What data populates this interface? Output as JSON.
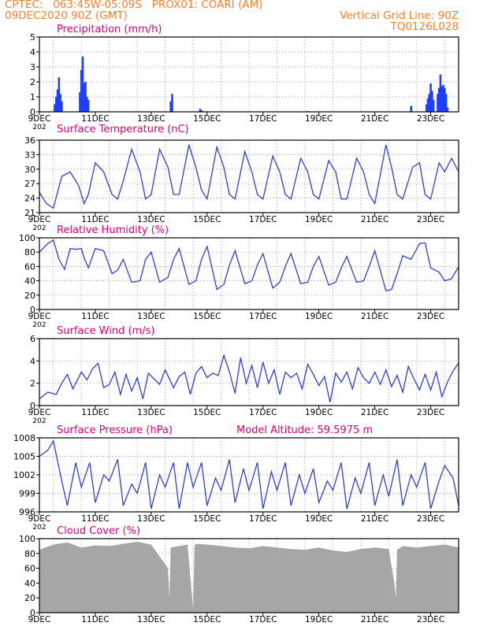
{
  "header": {
    "line1": "CPTEC:   063:45W-05:09S   PROX01: COARI (AM)",
    "line2": "09DEC2020 90Z (GMT)",
    "right1": "Vertical Grid Line: 90Z",
    "right2": "TQ0126L028"
  },
  "colors": {
    "header": "#ff7f27",
    "title": "#e0007a",
    "series": "#2f3fd6",
    "bars": "#1f3fff",
    "cloud": "#a6a6a6",
    "grid": "#9a9a9a"
  },
  "x_axis": {
    "tick_labels": [
      "9DEC",
      "11DEC",
      "13DEC",
      "15DEC",
      "17DEC",
      "19DEC",
      "21DEC",
      "23DEC"
    ],
    "year_stub": "202"
  },
  "chart_data": [
    {
      "type": "bar",
      "title": "Precipitation (mm/h)",
      "ylim": [
        0,
        5
      ],
      "yticks": [
        "0",
        "1",
        "2",
        "3",
        "4",
        "5"
      ],
      "x": [
        0.55,
        0.6,
        0.65,
        0.7,
        0.75,
        0.8,
        1.45,
        1.5,
        1.55,
        1.6,
        1.65,
        1.7,
        1.75,
        4.7,
        4.75,
        5.75,
        5.8,
        9.6,
        13.3,
        13.85,
        13.9,
        13.95,
        14.0,
        14.05,
        14.1,
        14.25,
        14.3,
        14.35,
        14.4,
        14.45,
        14.5,
        14.55,
        14.6
      ],
      "values": [
        0.5,
        1.0,
        1.5,
        2.3,
        1.2,
        0.7,
        1.3,
        2.8,
        3.7,
        1.9,
        2.0,
        1.0,
        0.8,
        0.7,
        1.2,
        0.2,
        0.1,
        0.05,
        0.4,
        0.5,
        0.9,
        1.2,
        1.9,
        1.4,
        0.8,
        1.2,
        1.6,
        2.5,
        1.7,
        1.8,
        1.6,
        1.2,
        0.3
      ]
    },
    {
      "type": "line",
      "title": "Surface Temperature (nC)",
      "ylim": [
        21,
        37
      ],
      "yticks": [
        "21",
        "24",
        "27",
        "30",
        "33",
        "36"
      ],
      "x": [
        0,
        0.25,
        0.5,
        0.8,
        1.1,
        1.4,
        1.6,
        1.75,
        2.0,
        2.3,
        2.6,
        2.8,
        3.0,
        3.3,
        3.6,
        3.8,
        4.0,
        4.3,
        4.6,
        4.8,
        5.0,
        5.35,
        5.6,
        5.8,
        6.0,
        6.35,
        6.6,
        6.8,
        7.0,
        7.35,
        7.6,
        7.8,
        8.0,
        8.35,
        8.6,
        8.8,
        9.0,
        9.35,
        9.6,
        9.8,
        10.0,
        10.35,
        10.6,
        10.8,
        11.0,
        11.35,
        11.6,
        11.8,
        12.0,
        12.4,
        12.6,
        12.8,
        13.0,
        13.35,
        13.6,
        13.8,
        14.0,
        14.3,
        14.5,
        14.75,
        15.0
      ],
      "values": [
        25.5,
        23,
        22,
        29,
        30,
        27,
        23,
        25,
        32,
        30,
        25,
        24,
        28,
        35,
        30,
        24,
        25,
        35,
        31,
        25,
        25,
        36,
        31,
        26,
        24,
        35.5,
        31,
        25,
        24,
        34.5,
        30,
        25,
        24,
        33.5,
        30,
        25,
        24,
        33,
        30,
        25,
        24,
        32.5,
        30,
        24,
        24,
        33,
        30,
        25,
        23,
        36,
        31,
        25,
        24,
        31,
        32,
        25,
        24,
        32,
        30,
        33,
        30
      ]
    },
    {
      "type": "line",
      "title": "Relative Humidity (%)",
      "ylim": [
        0,
        100
      ],
      "yticks": [
        "0",
        "20",
        "40",
        "60",
        "80",
        "100"
      ],
      "x": [
        0,
        0.3,
        0.5,
        0.7,
        0.9,
        1.1,
        1.3,
        1.5,
        1.6,
        1.75,
        2.0,
        2.3,
        2.6,
        2.8,
        3.0,
        3.3,
        3.6,
        3.8,
        4.0,
        4.3,
        4.6,
        4.8,
        5.0,
        5.35,
        5.6,
        5.8,
        6.0,
        6.35,
        6.6,
        6.8,
        7.0,
        7.35,
        7.6,
        7.8,
        8.0,
        8.35,
        8.6,
        8.8,
        9.0,
        9.35,
        9.6,
        9.8,
        10.0,
        10.35,
        10.6,
        10.8,
        11.0,
        11.35,
        11.6,
        11.8,
        12.0,
        12.4,
        12.6,
        12.8,
        13.0,
        13.3,
        13.6,
        13.8,
        14.0,
        14.3,
        14.5,
        14.75,
        15.0
      ],
      "values": [
        80,
        92,
        97,
        70,
        56,
        85,
        84,
        85,
        72,
        58,
        85,
        82,
        50,
        55,
        70,
        38,
        40,
        70,
        80,
        38,
        45,
        70,
        85,
        35,
        40,
        70,
        88,
        28,
        35,
        62,
        82,
        36,
        40,
        62,
        78,
        30,
        38,
        60,
        78,
        36,
        38,
        60,
        74,
        34,
        38,
        58,
        74,
        38,
        40,
        60,
        82,
        26,
        28,
        50,
        75,
        70,
        92,
        93,
        58,
        52,
        40,
        43,
        60
      ]
    },
    {
      "type": "line",
      "title": "Surface Wind (m/s)",
      "ylim": [
        0,
        6
      ],
      "yticks": [
        "0",
        "2",
        "4",
        "6"
      ],
      "x": [
        0,
        0.3,
        0.6,
        0.8,
        1.0,
        1.2,
        1.5,
        1.7,
        1.9,
        2.1,
        2.3,
        2.5,
        2.7,
        2.9,
        3.1,
        3.3,
        3.5,
        3.7,
        3.9,
        4.1,
        4.3,
        4.5,
        4.8,
        5.0,
        5.2,
        5.4,
        5.6,
        5.8,
        6.0,
        6.2,
        6.4,
        6.6,
        6.8,
        7.0,
        7.2,
        7.4,
        7.6,
        7.8,
        8.0,
        8.2,
        8.4,
        8.6,
        8.8,
        9.0,
        9.2,
        9.4,
        9.6,
        9.8,
        10.0,
        10.2,
        10.4,
        10.6,
        10.8,
        11.0,
        11.2,
        11.4,
        11.6,
        11.8,
        12.0,
        12.2,
        12.4,
        12.6,
        12.8,
        13.0,
        13.2,
        13.4,
        13.6,
        13.8,
        14.0,
        14.2,
        14.4,
        14.6,
        14.8,
        15.0
      ],
      "values": [
        0.6,
        1.2,
        1.0,
        2.0,
        2.8,
        1.5,
        3.0,
        2.3,
        3.3,
        3.8,
        1.6,
        1.9,
        3.0,
        1.0,
        2.8,
        1.3,
        2.5,
        0.6,
        2.9,
        2.4,
        1.9,
        3.2,
        1.6,
        2.6,
        3.0,
        1.0,
        2.9,
        3.5,
        2.5,
        2.9,
        2.7,
        4.5,
        3.0,
        1.1,
        4.3,
        2.0,
        3.6,
        1.6,
        3.9,
        2.0,
        3.2,
        1.0,
        3.0,
        2.5,
        2.9,
        1.5,
        3.7,
        2.8,
        1.8,
        2.6,
        0.3,
        2.9,
        2.1,
        3.0,
        1.5,
        3.4,
        2.5,
        2.0,
        3.0,
        1.9,
        3.2,
        1.7,
        2.7,
        1.2,
        3.5,
        2.4,
        1.4,
        2.8,
        1.4,
        3.0,
        0.8,
        2.1,
        3.1,
        3.8
      ]
    },
    {
      "type": "line",
      "title": "Surface Pressure (hPa)",
      "annotation": "Model Altitude: 59.5975 m",
      "ylim": [
        996,
        1008
      ],
      "yticks": [
        "996",
        "999",
        "1002",
        "1005",
        "1008"
      ],
      "x": [
        0,
        0.3,
        0.5,
        0.8,
        1.0,
        1.3,
        1.5,
        1.8,
        2.0,
        2.3,
        2.5,
        2.8,
        3.0,
        3.3,
        3.5,
        3.8,
        4.0,
        4.3,
        4.5,
        4.8,
        5.0,
        5.3,
        5.5,
        5.8,
        6.0,
        6.3,
        6.5,
        6.8,
        7.0,
        7.3,
        7.5,
        7.8,
        8.0,
        8.3,
        8.5,
        8.8,
        9.0,
        9.3,
        9.5,
        9.8,
        10.0,
        10.3,
        10.5,
        10.8,
        11.0,
        11.3,
        11.5,
        11.8,
        12.0,
        12.3,
        12.5,
        12.8,
        13.0,
        13.3,
        13.5,
        13.8,
        14.0,
        14.3,
        14.5,
        14.8,
        15.0
      ],
      "values": [
        1005,
        1006,
        1007.5,
        1001,
        997,
        1004,
        1000,
        1004,
        997.5,
        1002,
        1001,
        1004.5,
        997,
        1000.5,
        999,
        1004,
        996.5,
        1002,
        1000,
        1004,
        996.5,
        1004,
        1000,
        1004,
        997,
        1001.5,
        999.5,
        1004.5,
        997.5,
        1003,
        999.5,
        1004,
        996.5,
        1002.5,
        999.5,
        1004,
        997,
        1002,
        999,
        1003,
        997.5,
        1001,
        999.5,
        1004,
        996.5,
        1001.5,
        999,
        1004,
        997,
        1002,
        998.5,
        1004.5,
        997,
        1002,
        1000,
        1004,
        996.5,
        1001,
        1003.5,
        1001.5,
        997
      ]
    },
    {
      "type": "area",
      "title": "Cloud Cover (%)",
      "ylim": [
        0,
        100
      ],
      "yticks": [
        "0",
        "20",
        "40",
        "60",
        "80",
        "100"
      ],
      "x": [
        0,
        0.5,
        1.0,
        1.5,
        2.0,
        2.5,
        3.0,
        3.5,
        4.0,
        4.6,
        4.65,
        4.7,
        5.0,
        5.3,
        5.5,
        5.55,
        5.6,
        6.0,
        6.5,
        7.0,
        7.5,
        8.0,
        8.5,
        9.0,
        9.5,
        10.0,
        10.5,
        11.0,
        11.5,
        12.0,
        12.5,
        12.7,
        12.75,
        12.8,
        13.0,
        13.5,
        14.0,
        14.5,
        15.0
      ],
      "values": [
        85,
        92,
        95,
        88,
        91,
        90,
        93,
        96,
        92,
        60,
        20,
        88,
        90,
        92,
        5,
        90,
        93,
        92,
        90,
        88,
        87,
        90,
        88,
        86,
        85,
        88,
        84,
        82,
        86,
        88,
        86,
        40,
        20,
        85,
        90,
        88,
        90,
        92,
        88
      ]
    }
  ]
}
